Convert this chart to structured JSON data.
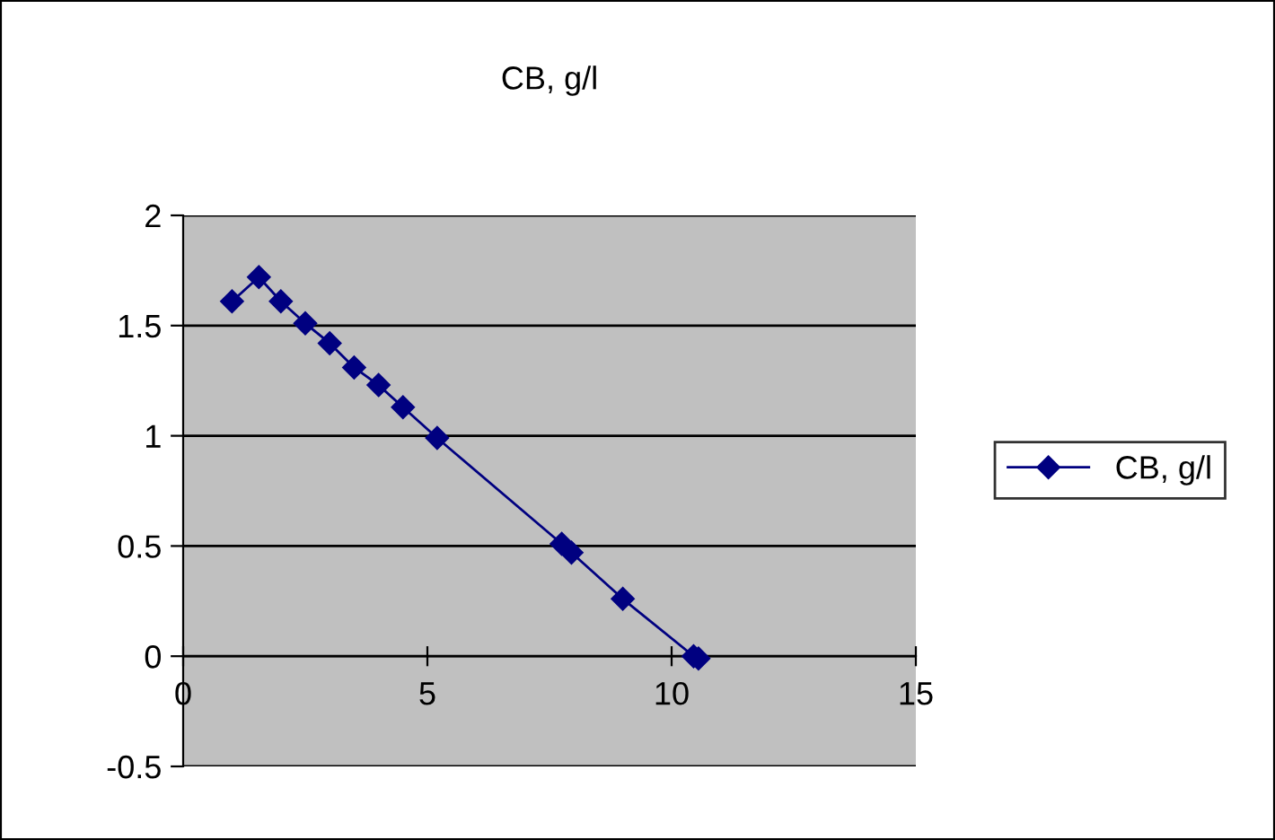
{
  "chart_data": {
    "type": "line",
    "title": "CB, g/l",
    "x": [
      1.0,
      1.55,
      2.0,
      2.5,
      3.0,
      3.5,
      4.0,
      4.5,
      5.2,
      7.75,
      7.95,
      9.0,
      10.45,
      10.55
    ],
    "series": [
      {
        "name": "CB, g/l",
        "color": "#000080",
        "values": [
          1.61,
          1.72,
          1.61,
          1.51,
          1.42,
          1.31,
          1.23,
          1.13,
          0.99,
          0.51,
          0.47,
          0.26,
          0.0,
          -0.01
        ]
      }
    ],
    "xlim": [
      0,
      15
    ],
    "xticks": [
      0,
      5,
      10,
      15
    ],
    "ylim": [
      -0.5,
      2
    ],
    "yticks": [
      -0.5,
      0,
      0.5,
      1,
      1.5,
      2
    ],
    "grid": "y",
    "legend": "right",
    "marker": "diamond",
    "line_style": "solid"
  }
}
